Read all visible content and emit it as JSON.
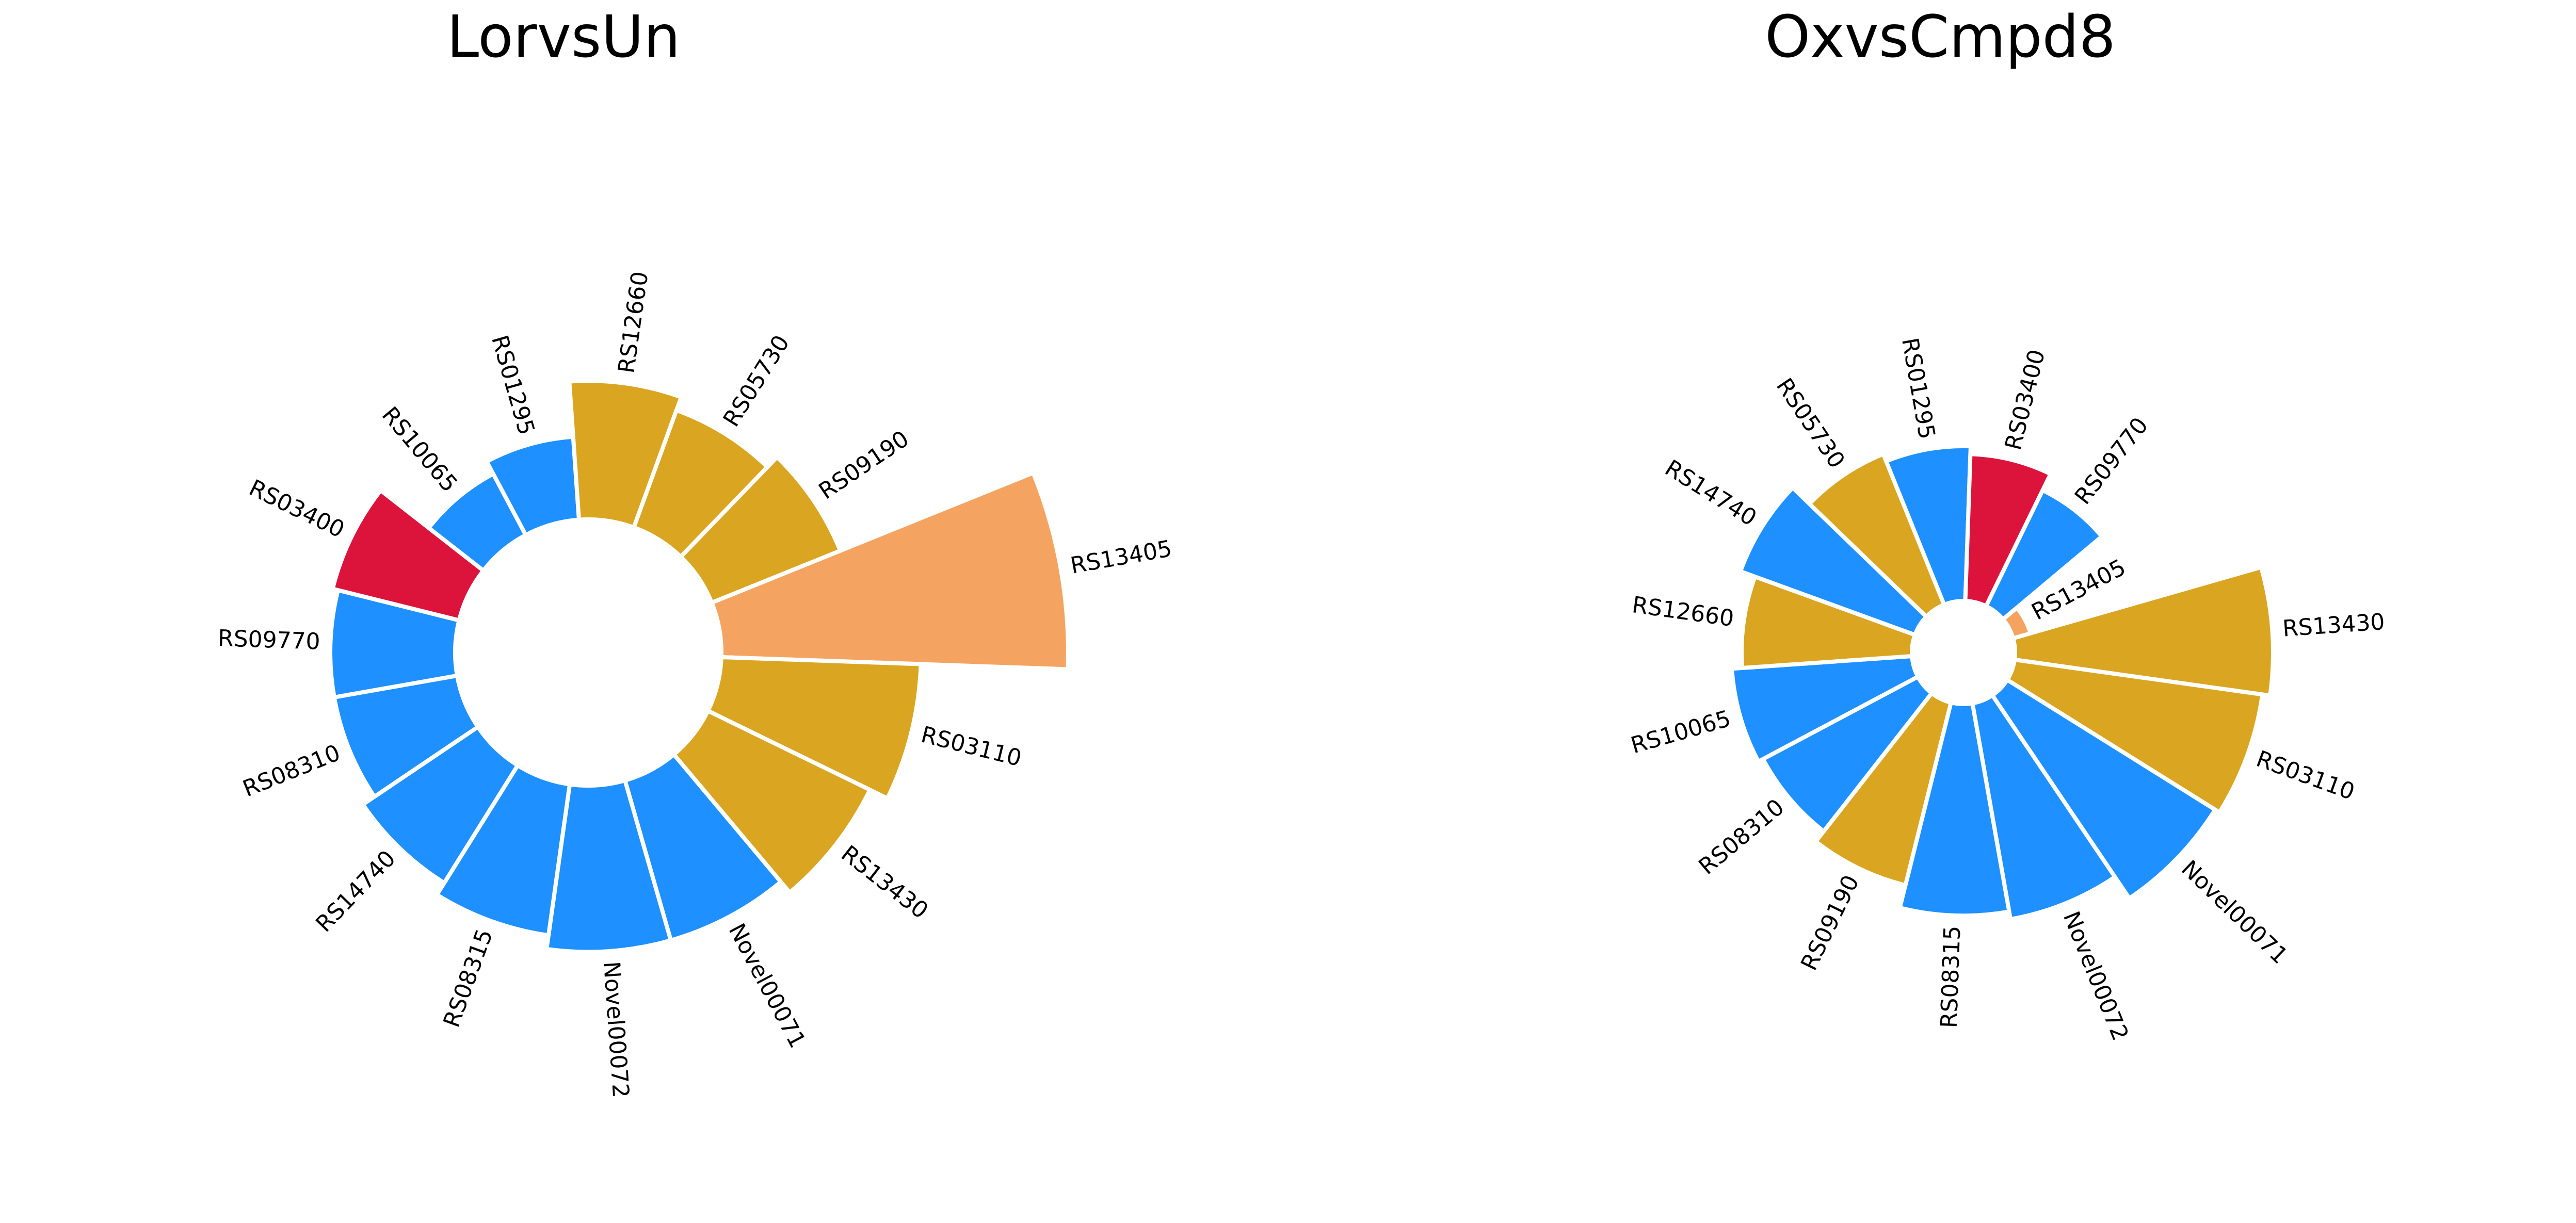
{
  "chart_data": [
    {
      "type": "bar",
      "subtype": "circular-bar",
      "title": "LorvsUn",
      "categories": [
        "RS13405",
        "RS03110",
        "RS13430",
        "Novel00071",
        "Novel00072",
        "RS08315",
        "RS14740",
        "RS08310",
        "RS09770",
        "RS03400",
        "RS10065",
        "RS01295",
        "RS12660",
        "RS05730",
        "RS09190"
      ],
      "values": [
        1.25,
        0.72,
        0.65,
        0.6,
        0.6,
        0.55,
        0.5,
        0.45,
        0.45,
        0.47,
        0.25,
        0.3,
        0.5,
        0.45,
        0.5
      ],
      "colors": [
        "#F4A460",
        "#DAA520",
        "#DAA520",
        "#1E90FF",
        "#1E90FF",
        "#1E90FF",
        "#1E90FF",
        "#1E90FF",
        "#1E90FF",
        "#DC143C",
        "#1E90FF",
        "#1E90FF",
        "#DAA520",
        "#DAA520",
        "#DAA520"
      ],
      "inner_radius": 0.6,
      "grid": false,
      "legend": "none"
    },
    {
      "type": "bar",
      "subtype": "circular-bar",
      "title": "OxvsCmpd8",
      "categories": [
        "RS13430",
        "RS03110",
        "Novel00071",
        "Novel00072",
        "RS08315",
        "RS09190",
        "RS08310",
        "RS10065",
        "RS12660",
        "RS14740",
        "RS05730",
        "RS01295",
        "RS03400",
        "RS09770",
        "RS13405"
      ],
      "values": [
        1.0,
        0.97,
        0.95,
        0.85,
        0.82,
        0.73,
        0.68,
        0.7,
        0.66,
        0.72,
        0.63,
        0.6,
        0.57,
        0.5,
        0.07
      ],
      "colors": [
        "#DAA520",
        "#DAA520",
        "#1E90FF",
        "#1E90FF",
        "#1E90FF",
        "#DAA520",
        "#1E90FF",
        "#1E90FF",
        "#DAA520",
        "#1E90FF",
        "#DAA520",
        "#1E90FF",
        "#DC143C",
        "#1E90FF",
        "#F4A460"
      ],
      "inner_radius": 0.25,
      "grid": false,
      "legend": "none"
    }
  ]
}
